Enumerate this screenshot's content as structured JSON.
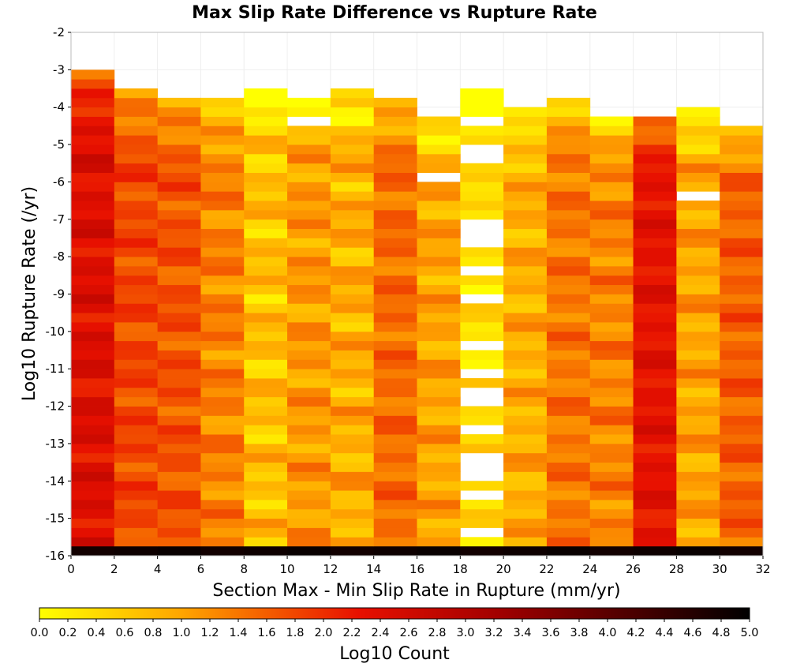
{
  "chart_data": {
    "type": "heatmap",
    "title": "Max Slip Rate Difference vs Rupture Rate",
    "xlabel": "Section Max - Min Slip Rate in Rupture (mm/yr)",
    "ylabel": "Log10 Rupture Rate (/yr)",
    "colorbar_label": "Log10 Count",
    "xlim": [
      0,
      32
    ],
    "ylim": [
      -16,
      -2
    ],
    "x_ticks": [
      "0",
      "2",
      "4",
      "6",
      "8",
      "10",
      "12",
      "14",
      "16",
      "18",
      "20",
      "22",
      "24",
      "26",
      "28",
      "30",
      "32"
    ],
    "y_ticks": [
      "-2",
      "-3",
      "-4",
      "-5",
      "-6",
      "-7",
      "-8",
      "-9",
      "-10",
      "-11",
      "-12",
      "-13",
      "-14",
      "-15",
      "-16"
    ],
    "colorbar_range": [
      0.0,
      5.0
    ],
    "colorbar_ticks": [
      "0.0",
      "0.2",
      "0.4",
      "0.6",
      "0.8",
      "1.0",
      "1.2",
      "1.4",
      "1.6",
      "1.8",
      "2.0",
      "2.2",
      "2.4",
      "2.6",
      "2.8",
      "3.0",
      "3.2",
      "3.4",
      "3.6",
      "3.8",
      "4.0",
      "4.2",
      "4.4",
      "4.6",
      "4.8",
      "5.0"
    ],
    "colormap": [
      "#ffff00",
      "#ff8000",
      "#e00000",
      "#000000"
    ],
    "x_bin_width": 2,
    "y_bin_height": 0.25,
    "y_bin_start": -16,
    "columns": [
      {
        "x": 0,
        "top": -3.0,
        "base": 2.4,
        "amp": 0.25
      },
      {
        "x": 2,
        "top": -3.5,
        "base": 1.8,
        "amp": 0.25
      },
      {
        "x": 4,
        "top": -3.75,
        "base": 1.7,
        "amp": 0.25
      },
      {
        "x": 6,
        "top": -3.75,
        "base": 1.3,
        "amp": 0.3
      },
      {
        "x": 8,
        "top": -3.5,
        "base": 0.7,
        "amp": 0.35
      },
      {
        "x": 10,
        "top": -3.75,
        "base": 1.1,
        "amp": 0.3
      },
      {
        "x": 12,
        "top": -3.5,
        "base": 0.9,
        "amp": 0.35
      },
      {
        "x": 14,
        "top": -3.75,
        "base": 1.5,
        "amp": 0.25
      },
      {
        "x": 16,
        "top": -4.25,
        "base": 1.0,
        "amp": 0.3
      },
      {
        "x": 18,
        "top": -3.5,
        "base": 0.35,
        "amp": 0.25
      },
      {
        "x": 20,
        "top": -4.0,
        "base": 0.9,
        "amp": 0.3
      },
      {
        "x": 22,
        "top": -3.75,
        "base": 1.4,
        "amp": 0.25
      },
      {
        "x": 24,
        "top": -4.25,
        "base": 1.3,
        "amp": 0.3
      },
      {
        "x": 26,
        "top": -4.25,
        "base": 2.3,
        "amp": 0.2
      },
      {
        "x": 28,
        "top": -4.0,
        "base": 1.0,
        "amp": 0.3
      },
      {
        "x": 30,
        "top": -4.5,
        "base": 1.6,
        "amp": 0.25
      }
    ],
    "bottom_row_value": 4.8,
    "empty_cells": [
      {
        "x": 6,
        "y": -3.25
      },
      {
        "x": 6,
        "y": -3.5
      },
      {
        "x": 10,
        "y": -4.25
      },
      {
        "x": 16,
        "y": -5.75
      },
      {
        "x": 18,
        "y": -4.25
      },
      {
        "x": 18,
        "y": -5.0
      },
      {
        "x": 18,
        "y": -5.25
      },
      {
        "x": 18,
        "y": -7.0
      },
      {
        "x": 18,
        "y": -7.25
      },
      {
        "x": 18,
        "y": -7.5
      },
      {
        "x": 18,
        "y": -8.25
      },
      {
        "x": 18,
        "y": -9.0
      },
      {
        "x": 18,
        "y": -10.25
      },
      {
        "x": 18,
        "y": -11.0
      },
      {
        "x": 18,
        "y": -11.5
      },
      {
        "x": 18,
        "y": -11.75
      },
      {
        "x": 18,
        "y": -12.5
      },
      {
        "x": 18,
        "y": -13.25
      },
      {
        "x": 18,
        "y": -13.5
      },
      {
        "x": 18,
        "y": -13.75
      },
      {
        "x": 18,
        "y": -14.25
      },
      {
        "x": 18,
        "y": -15.25
      },
      {
        "x": 20,
        "y": -15.75
      },
      {
        "x": 28,
        "y": -6.25
      }
    ]
  }
}
